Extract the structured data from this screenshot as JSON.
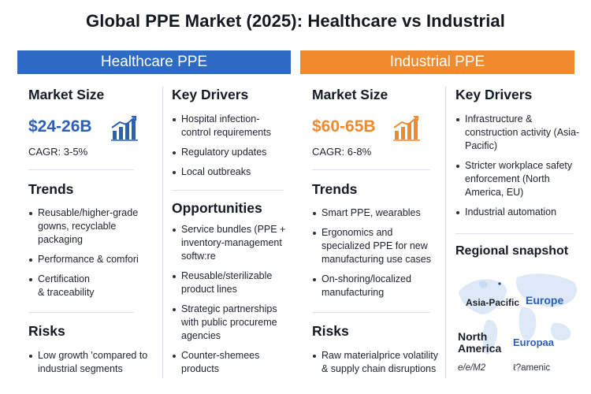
{
  "title": "Global PPE Market (2025): Healthcare vs Industrial",
  "colors": {
    "healthcare": "#2d6ac4",
    "industrial": "#ef8a2e"
  },
  "healthcare": {
    "header": "Healthcare PPE",
    "market_size_heading": "Market Size",
    "market_size": "$24-26B",
    "cagr": "CAGR: 3-5%",
    "trends_heading": "Trends",
    "trends": [
      "Reusable/higher-grade gowns, recyclable packaging",
      "Performance & comfori",
      "Certification\n& traceability"
    ],
    "risks_heading": "Risks",
    "risks": [
      "Low growth 'compared to industrial segments"
    ],
    "drivers_heading": "Key Drivers",
    "drivers": [
      "Hospital infection-control requirements",
      "Regulatory updates",
      "Local outbreaks"
    ],
    "opportunities_heading": "Opportunities",
    "opportunities": [
      "Service bundles (PPE + inventory-management softw:re",
      "Reusable/sterilizable product lines",
      "Strategic partnerships with public procureme agencies",
      "Counter-shemees products"
    ]
  },
  "industrial": {
    "header": "Industrial PPE",
    "market_size_heading": "Market Size",
    "market_size": "$60-65B",
    "cagr": "CAGR: 6-8%",
    "trends_heading": "Trends",
    "trends": [
      "Smart PPE, wearables",
      "Ergonomics and specialized PPE for new manufacturing use cases",
      "On-shoring/localized manufacturing"
    ],
    "risks_heading": "Risks",
    "risks": [
      "Raw materialprice volatility & supply chain disruptions"
    ],
    "drivers_heading": "Key Drivers",
    "drivers": [
      "Infrastructure & construction activity (Asia-Pacific)",
      "Stricter workplace safety enforcement (North America, EU)",
      "Industrial automation"
    ],
    "regional_heading": "Regional snapshot",
    "regions": {
      "asia_pacific": "Asia-Pacific",
      "europe": "Europe",
      "north_america": "North\nAmerica",
      "europaa": "Europaa",
      "garbled_1": "e/e/M2",
      "garbled_2": "ℓ?amenic"
    }
  }
}
